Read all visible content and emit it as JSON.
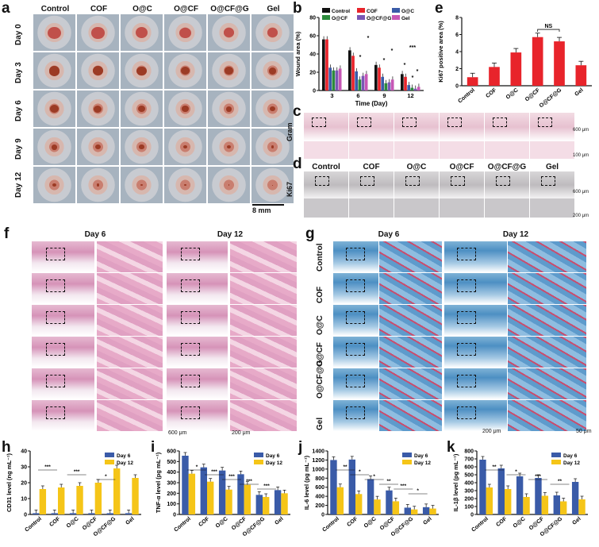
{
  "panels": {
    "a": "a",
    "b": "b",
    "c": "c",
    "d": "d",
    "e": "e",
    "f": "f",
    "g": "g",
    "h": "h",
    "i": "i",
    "j": "j",
    "k": "k"
  },
  "groups": [
    "Control",
    "COF",
    "O@C",
    "O@CF",
    "O@CF@G",
    "Gel"
  ],
  "panel_a": {
    "days": [
      "Day 0",
      "Day 3",
      "Day 6",
      "Day 9",
      "Day 12"
    ],
    "scale_bar": "8 mm"
  },
  "panel_c": {
    "row_label": "Gram",
    "scale_top": "600 μm",
    "scale_bottom": "100 μm"
  },
  "panel_d": {
    "row_label": "Ki67",
    "scale_top": "600 μm",
    "scale_bottom": "200 μm"
  },
  "panel_f": {
    "headers": [
      "Day 6",
      "Day 12"
    ],
    "scale_left": "600 μm",
    "scale_right": "200 μm"
  },
  "panel_g": {
    "headers": [
      "Day 6",
      "Day 12"
    ],
    "row_labels": [
      "Control",
      "COF",
      "O@C",
      "O@CF",
      "O@CF@G",
      "Gel"
    ],
    "scale_left": "200 μm",
    "scale_right": "50 μm"
  },
  "chart_data": [
    {
      "panel": "b",
      "type": "bar",
      "xlabel": "Time (Day)",
      "ylabel": "Wound area (%)",
      "categories": [
        "3",
        "6",
        "9",
        "12"
      ],
      "ylim": [
        0,
        80
      ],
      "yticks": [
        "0",
        "20",
        "40",
        "60",
        "80"
      ],
      "series": [
        {
          "name": "Control",
          "color": "#111111",
          "values": [
            56,
            44,
            28,
            18
          ]
        },
        {
          "name": "COF",
          "color": "#e8242b",
          "values": [
            56,
            38,
            25,
            15
          ]
        },
        {
          "name": "O@C",
          "color": "#3a5ba8",
          "values": [
            25,
            21,
            15,
            6
          ]
        },
        {
          "name": "O@CF",
          "color": "#2c8a3c",
          "values": [
            22,
            12,
            8,
            3
          ]
        },
        {
          "name": "O@CF@G",
          "color": "#7a57b5",
          "values": [
            22,
            16,
            9,
            2
          ]
        },
        {
          "name": "Gel",
          "color": "#c757b5",
          "values": [
            24,
            18,
            12,
            4
          ]
        }
      ],
      "annotations": [
        "*",
        "*",
        "***",
        "*",
        "*",
        "*",
        "*",
        "*"
      ]
    },
    {
      "panel": "e",
      "type": "bar",
      "ylabel": "Ki67 positive area (%)",
      "categories": [
        "Control",
        "COF",
        "O@C",
        "O@CF",
        "O@CF@G",
        "Gel"
      ],
      "values": [
        1.0,
        2.2,
        3.9,
        5.7,
        5.2,
        2.4
      ],
      "ylim": [
        0,
        8
      ],
      "yticks": [
        "0",
        "2",
        "4",
        "6",
        "8"
      ],
      "color": "#e8242b",
      "annotations": [
        "NS"
      ]
    },
    {
      "panel": "h",
      "type": "bar",
      "ylabel": "CD31 level (ng mL⁻¹)",
      "categories": [
        "Control",
        "COF",
        "O@C",
        "O@CF",
        "O@CF@G",
        "Gel"
      ],
      "ylim": [
        0,
        40
      ],
      "yticks": [
        "0",
        "10",
        "20",
        "30",
        "40"
      ],
      "series": [
        {
          "name": "Day 6",
          "color": "#3a5ba8",
          "values": [
            0.8,
            0.8,
            0.8,
            0.8,
            0.8,
            0.8
          ]
        },
        {
          "name": "Day 12",
          "color": "#f5c518",
          "values": [
            16,
            17,
            18,
            20,
            29,
            23
          ]
        }
      ],
      "annotations": [
        "***",
        "***",
        "*"
      ]
    },
    {
      "panel": "i",
      "type": "bar",
      "ylabel": "TNF-α level (pg mL⁻¹)",
      "categories": [
        "Control",
        "COF",
        "O@C",
        "O@CF",
        "O@CF@G",
        "Gel"
      ],
      "ylim": [
        0,
        600
      ],
      "yticks": [
        "0",
        "100",
        "200",
        "300",
        "400",
        "500",
        "600"
      ],
      "series": [
        {
          "name": "Day 6",
          "color": "#3a5ba8",
          "values": [
            555,
            445,
            415,
            380,
            185,
            230
          ]
        },
        {
          "name": "Day 12",
          "color": "#f5c518",
          "values": [
            385,
            310,
            235,
            280,
            165,
            200
          ]
        }
      ],
      "annotations": [
        "*",
        "***",
        "***",
        "***",
        "***"
      ]
    },
    {
      "panel": "j",
      "type": "bar",
      "ylabel": "IL-6 level (pg mL⁻¹)",
      "categories": [
        "Control",
        "COF",
        "O@C",
        "O@CF",
        "O@CF@G",
        "Gel"
      ],
      "ylim": [
        0,
        1400
      ],
      "yticks": [
        "0",
        "200",
        "400",
        "600",
        "800",
        "1000",
        "1200",
        "1400"
      ],
      "series": [
        {
          "name": "Day 6",
          "color": "#3a5ba8",
          "values": [
            1200,
            1210,
            780,
            530,
            150,
            160
          ]
        },
        {
          "name": "Day 12",
          "color": "#f5c518",
          "values": [
            600,
            450,
            330,
            290,
            110,
            130
          ]
        }
      ],
      "annotations": [
        "**",
        "*",
        "*",
        "**",
        "***",
        "*"
      ]
    },
    {
      "panel": "k",
      "type": "bar",
      "ylabel": "IL-1β level (pg mL⁻¹)",
      "categories": [
        "Control",
        "COF",
        "O@C",
        "O@CF",
        "O@CF@G",
        "Gel"
      ],
      "ylim": [
        0,
        800
      ],
      "yticks": [
        "0",
        "100",
        "200",
        "300",
        "400",
        "500",
        "600",
        "700",
        "800"
      ],
      "series": [
        {
          "name": "Day 6",
          "color": "#3a5ba8",
          "values": [
            690,
            580,
            480,
            460,
            240,
            410
          ]
        },
        {
          "name": "Day 12",
          "color": "#f5c518",
          "values": [
            340,
            320,
            220,
            235,
            165,
            190
          ]
        }
      ],
      "annotations": [
        "**",
        "*",
        "***",
        "**"
      ]
    }
  ]
}
